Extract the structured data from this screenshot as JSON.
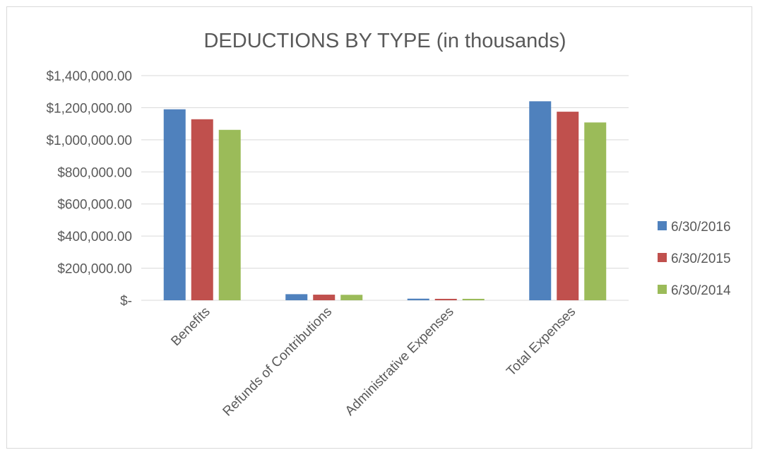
{
  "chart_data": {
    "type": "bar",
    "title": "DEDUCTIONS BY TYPE (in thousands)",
    "xlabel": "",
    "ylabel": "",
    "categories": [
      "Benefits",
      "Refunds of Contributions",
      "Administrative Expenses",
      "Total Expenses"
    ],
    "series": [
      {
        "name": "6/30/2016",
        "color": "#4f81bd",
        "values": [
          1190000,
          38000,
          10000,
          1240000
        ]
      },
      {
        "name": "6/30/2015",
        "color": "#c0504d",
        "values": [
          1128000,
          35000,
          9000,
          1175000
        ]
      },
      {
        "name": "6/30/2014",
        "color": "#9bbb59",
        "values": [
          1062000,
          34000,
          9000,
          1108000
        ]
      }
    ],
    "ylim": [
      0,
      1400000
    ],
    "yticks": [
      0,
      200000,
      400000,
      600000,
      800000,
      1000000,
      1200000,
      1400000
    ],
    "ytick_labels": [
      "$-",
      "$200,000.00",
      "$400,000.00",
      "$600,000.00",
      "$800,000.00",
      "$1,000,000.00",
      "$1,200,000.00",
      "$1,400,000.00"
    ],
    "grid": true,
    "legend_position": "right"
  }
}
